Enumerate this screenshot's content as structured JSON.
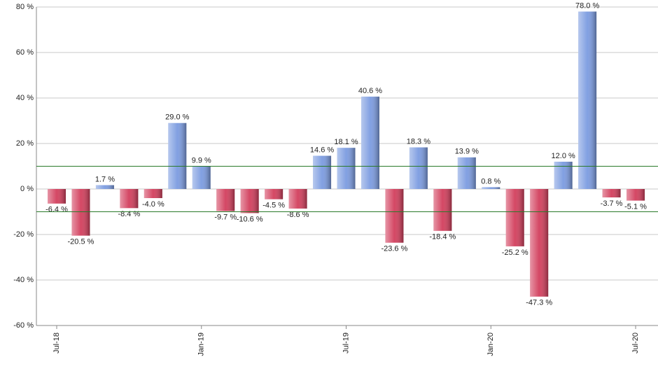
{
  "chart_data": {
    "type": "bar",
    "categories": [
      "Jul-18",
      null,
      null,
      null,
      null,
      null,
      "Jan-19",
      null,
      null,
      null,
      null,
      null,
      "Jul-19",
      null,
      null,
      null,
      null,
      null,
      "Jan-20",
      null,
      null,
      null,
      null,
      null,
      "Jul-20"
    ],
    "values": [
      -6.4,
      -20.5,
      1.7,
      -8.4,
      -4.0,
      29.0,
      9.9,
      -9.7,
      -10.6,
      -4.5,
      -8.6,
      14.6,
      18.1,
      40.6,
      -23.6,
      18.3,
      -18.4,
      13.9,
      0.8,
      -25.2,
      -47.3,
      12.0,
      78.0,
      -3.7,
      -5.1
    ],
    "value_labels": [
      "-6.4 %",
      "-20.5 %",
      "1.7 %",
      "-8.4 %",
      "-4.0 %",
      "29.0 %",
      "9.9 %",
      "-9.7 %",
      "-10.6 %",
      "-4.5 %",
      "-8.6 %",
      "14.6 %",
      "18.1 %",
      "40.6 %",
      "-23.6 %",
      "18.3 %",
      "-18.4 %",
      "13.9 %",
      "0.8 %",
      "-25.2 %",
      "-47.3 %",
      "12.0 %",
      "78.0 %",
      "-3.7 %",
      "-5.1 %"
    ],
    "positive_color": "#7b9be0",
    "negative_color": "#d23e5c",
    "ylim": [
      -60,
      80
    ],
    "yticks": [
      {
        "value": -60,
        "label": "-60 %"
      },
      {
        "value": -40,
        "label": "-40 %"
      },
      {
        "value": -20,
        "label": "-20 %"
      },
      {
        "value": 0,
        "label": "0 %"
      },
      {
        "value": 20,
        "label": "20 %"
      },
      {
        "value": 40,
        "label": "40 %"
      },
      {
        "value": 60,
        "label": "60 %"
      },
      {
        "value": 80,
        "label": "80 %"
      }
    ],
    "grid": true,
    "reference_lines": [
      10,
      -10
    ],
    "reference_color": "#2a7a2a"
  }
}
